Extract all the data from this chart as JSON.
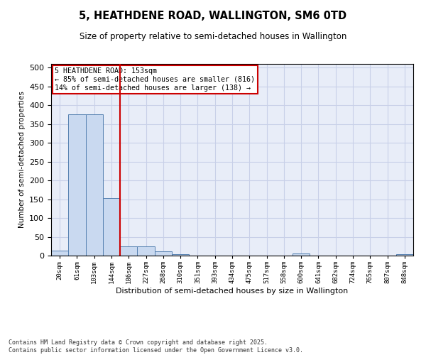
{
  "title": "5, HEATHDENE ROAD, WALLINGTON, SM6 0TD",
  "subtitle": "Size of property relative to semi-detached houses in Wallington",
  "xlabel": "Distribution of semi-detached houses by size in Wallington",
  "ylabel": "Number of semi-detached properties",
  "categories": [
    "20sqm",
    "61sqm",
    "103sqm",
    "144sqm",
    "186sqm",
    "227sqm",
    "268sqm",
    "310sqm",
    "351sqm",
    "393sqm",
    "434sqm",
    "475sqm",
    "517sqm",
    "558sqm",
    "600sqm",
    "641sqm",
    "682sqm",
    "724sqm",
    "765sqm",
    "807sqm",
    "848sqm"
  ],
  "values": [
    14,
    375,
    375,
    153,
    24,
    24,
    12,
    4,
    0,
    0,
    0,
    0,
    0,
    0,
    5,
    0,
    0,
    0,
    0,
    0,
    4
  ],
  "bar_color": "#c9d9f0",
  "bar_edge_color": "#5580b0",
  "property_line_x": 3.5,
  "annotation_title": "5 HEATHDENE ROAD: 153sqm",
  "annotation_line1": "← 85% of semi-detached houses are smaller (816)",
  "annotation_line2": "14% of semi-detached houses are larger (138) →",
  "vline_color": "#cc0000",
  "annotation_box_color": "#cc0000",
  "grid_color": "#c8d0e8",
  "background_color": "#e8edf8",
  "footer": "Contains HM Land Registry data © Crown copyright and database right 2025.\nContains public sector information licensed under the Open Government Licence v3.0.",
  "ylim": [
    0,
    510
  ],
  "yticks": [
    0,
    50,
    100,
    150,
    200,
    250,
    300,
    350,
    400,
    450,
    500
  ]
}
